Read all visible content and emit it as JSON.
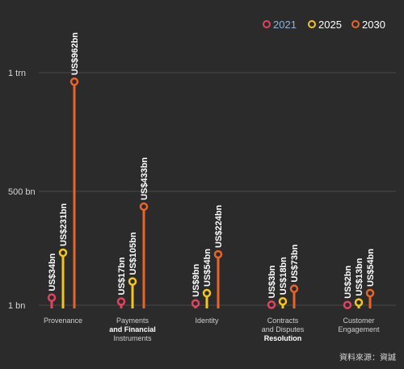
{
  "chart_data": {
    "type": "lollipop",
    "yscale": "log",
    "ylim": [
      1,
      1500
    ],
    "yticks": [
      {
        "value": 1000,
        "label": "1 trn"
      },
      {
        "value": 500,
        "label": "500 bn"
      },
      {
        "value": 1,
        "label": "1 bn"
      }
    ],
    "categories": [
      {
        "lines": [
          {
            "text": "Provenance",
            "bold": false
          }
        ]
      },
      {
        "lines": [
          {
            "text": "Payments",
            "bold": false
          },
          {
            "text": "and Financial",
            "bold": true
          },
          {
            "text": "Instruments",
            "bold": false
          }
        ]
      },
      {
        "lines": [
          {
            "text": "Identity",
            "bold": false
          }
        ]
      },
      {
        "lines": [
          {
            "text": "Contracts",
            "bold": false
          },
          {
            "text": "and Disputes",
            "bold": false
          },
          {
            "text": "Resolution",
            "bold": true
          }
        ]
      },
      {
        "lines": [
          {
            "text": "Customer",
            "bold": false
          },
          {
            "text": "Engagement",
            "bold": false
          }
        ]
      }
    ],
    "series": [
      {
        "name": "2021",
        "color": "#e0445e",
        "legend_color": "#8fb4d9",
        "values": [
          34,
          17,
          9,
          3,
          2
        ],
        "labels": [
          "US$34bn",
          "US$17bn",
          "US$9bn",
          "US$3bn",
          "US$2bn"
        ]
      },
      {
        "name": "2025",
        "color": "#f5c518",
        "legend_color": "#ffffff",
        "values": [
          231,
          105,
          54,
          18,
          13
        ],
        "labels": [
          "US$231bn",
          "US$105bn",
          "US$54bn",
          "US$18bn",
          "US$13bn"
        ]
      },
      {
        "name": "2030",
        "color": "#e8642a",
        "legend_color": "#ffffff",
        "values": [
          962,
          433,
          224,
          73,
          54
        ],
        "labels": [
          "US$962bn",
          "US$433bn",
          "US$224bn",
          "US$73bn",
          "US$54bn"
        ]
      }
    ],
    "legend_position": "top-right"
  },
  "source_note": "資料來源：資誠"
}
